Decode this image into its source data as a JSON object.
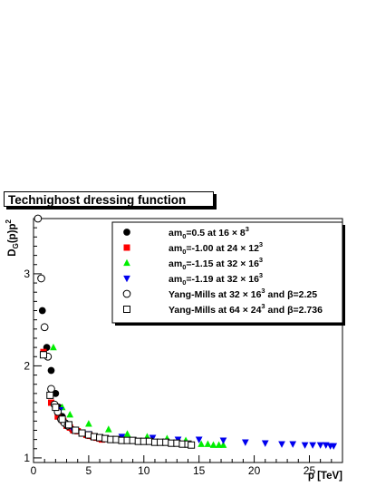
{
  "chart_data": {
    "type": "scatter",
    "title": "Technighost dressing function",
    "xlabel": "p [TeV]",
    "ylabel": "D_G(p)p^2",
    "xlim": [
      0,
      28
    ],
    "ylim": [
      0.95,
      3.6
    ],
    "xticks": [
      "0",
      "5",
      "10",
      "15",
      "20",
      "25"
    ],
    "yticks": [
      "1",
      "2",
      "3"
    ],
    "legend_position": "top-right",
    "series": [
      {
        "name": "am0=0.5 at 16x8^3",
        "label_parts": {
          "pre": "am",
          "sub": "0",
          "mid": "=0.5 at 16 × 8",
          "sup": "3",
          "post": ""
        },
        "marker": "filled-circle",
        "color": "#000000",
        "x": [
          0.8,
          1.2,
          1.6,
          2.0,
          2.3,
          2.6,
          2.9,
          3.1,
          3.3,
          3.5
        ],
        "y": [
          2.6,
          2.2,
          1.95,
          1.7,
          1.55,
          1.45,
          1.38,
          1.35,
          1.33,
          1.31
        ]
      },
      {
        "name": "am0=-1.00 at 24x12^3",
        "label_parts": {
          "pre": "am",
          "sub": "0",
          "mid": "=-1.00 at 24 × 12",
          "sup": "3",
          "post": ""
        },
        "marker": "filled-square",
        "color": "#ff0000",
        "x": [
          0.9,
          1.6,
          2.2,
          2.7,
          3.0,
          3.3,
          3.6,
          4.0,
          4.4,
          4.8,
          5.1,
          5.4,
          5.7,
          6.0,
          6.2
        ],
        "y": [
          2.15,
          1.6,
          1.45,
          1.4,
          1.35,
          1.33,
          1.3,
          1.29,
          1.27,
          1.25,
          1.24,
          1.23,
          1.22,
          1.21,
          1.2
        ]
      },
      {
        "name": "am0=-1.15 at 32x16^3",
        "label_parts": {
          "pre": "am",
          "sub": "0",
          "mid": "=-1.15 at 32 × 16",
          "sup": "3",
          "post": ""
        },
        "marker": "filled-triangle-up",
        "color": "#00ee00",
        "x": [
          1.8,
          2.6,
          3.3,
          5.0,
          6.8,
          8.5,
          10.3,
          12.1,
          13.8,
          15.2,
          15.8,
          16.3,
          16.8,
          17.2
        ],
        "y": [
          2.2,
          1.55,
          1.47,
          1.37,
          1.31,
          1.26,
          1.23,
          1.21,
          1.19,
          1.15,
          1.15,
          1.14,
          1.14,
          1.14
        ]
      },
      {
        "name": "am0=-1.19 at 32x16^3",
        "label_parts": {
          "pre": "am",
          "sub": "0",
          "mid": "=-1.19 at 32 × 16",
          "sup": "3",
          "post": ""
        },
        "marker": "filled-triangle-down",
        "color": "#0000ee",
        "x": [
          2.4,
          3.6,
          5.0,
          8.0,
          10.8,
          13.1,
          15.0,
          17.2,
          19.2,
          21.0,
          22.5,
          23.5,
          24.6,
          25.3,
          26.0,
          26.5,
          26.9,
          27.2
        ],
        "y": [
          1.52,
          1.3,
          1.26,
          1.23,
          1.22,
          1.2,
          1.2,
          1.19,
          1.17,
          1.16,
          1.15,
          1.15,
          1.14,
          1.14,
          1.14,
          1.14,
          1.13,
          1.13
        ]
      },
      {
        "name": "Yang-Mills at 32x16^3 and beta=2.25",
        "label_parts": {
          "pre": "Yang-Mills at 32 × 16",
          "sup": "3",
          "post": " and β=2.25"
        },
        "marker": "open-circle",
        "color": "#000000",
        "x": [
          0.4,
          0.7,
          1.0,
          1.3,
          1.6,
          1.9,
          2.2,
          2.5,
          2.8,
          3.1
        ],
        "y": [
          3.6,
          2.95,
          2.42,
          2.1,
          1.75,
          1.58,
          1.5,
          1.42,
          1.38,
          1.35
        ]
      },
      {
        "name": "Yang-Mills at 64x24^3 and beta=2.736",
        "label_parts": {
          "pre": "Yang-Mills at 64 × 24",
          "sup": "3",
          "post": " and β=2.736"
        },
        "marker": "open-square",
        "color": "#000000",
        "x": [
          0.9,
          1.5,
          2.0,
          2.6,
          3.2,
          3.8,
          4.4,
          5.0,
          5.5,
          6.0,
          6.5,
          7.0,
          7.5,
          8.0,
          8.5,
          9.0,
          9.5,
          10.0,
          10.5,
          11.0,
          11.5,
          12.0,
          12.5,
          13.0,
          13.5,
          14.0,
          14.3
        ],
        "y": [
          2.12,
          1.68,
          1.55,
          1.42,
          1.36,
          1.3,
          1.27,
          1.25,
          1.23,
          1.22,
          1.21,
          1.2,
          1.2,
          1.19,
          1.19,
          1.19,
          1.18,
          1.18,
          1.18,
          1.17,
          1.17,
          1.17,
          1.16,
          1.16,
          1.15,
          1.15,
          1.14
        ]
      }
    ]
  }
}
